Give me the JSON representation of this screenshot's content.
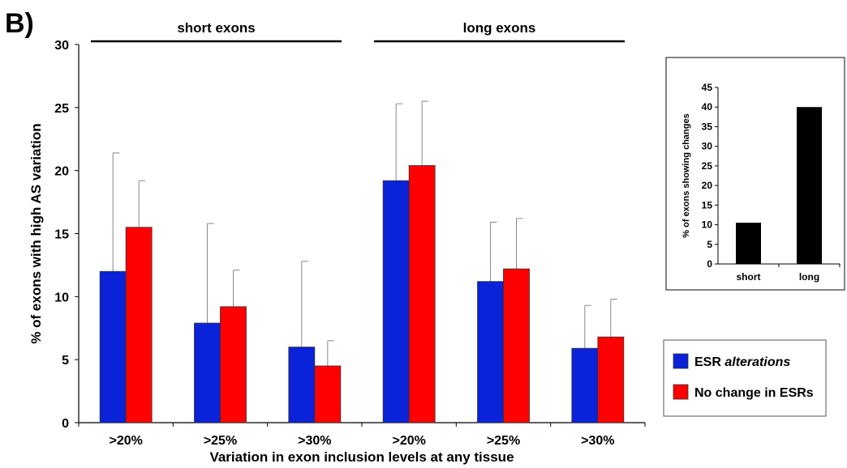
{
  "panel_label": "B)",
  "colors": {
    "esr_alterations": "#0a22d8",
    "no_change": "#ff0000",
    "error_bar": "#888888",
    "axis": "#000000",
    "inset_bar": "#000000"
  },
  "chart_data": [
    {
      "type": "bar",
      "categories": [
        ">20%",
        ">25%",
        ">30%",
        ">20%",
        ">25%",
        ">30%"
      ],
      "groups": [
        {
          "label": "short exons",
          "category_indices": [
            0,
            1,
            2
          ]
        },
        {
          "label": "long exons",
          "category_indices": [
            3,
            4,
            5
          ]
        }
      ],
      "series": [
        {
          "name": "ESR alterations",
          "name_plain": "ESR ",
          "name_italic": "alterations",
          "color": "#0a22d8",
          "values": [
            12.0,
            7.9,
            6.0,
            19.2,
            11.2,
            5.9
          ],
          "error_upper": [
            21.4,
            15.8,
            12.8,
            25.3,
            15.9,
            9.3
          ]
        },
        {
          "name": "No change in ESRs",
          "color": "#ff0000",
          "values": [
            15.5,
            9.2,
            4.5,
            20.4,
            12.2,
            6.8
          ],
          "error_upper": [
            19.2,
            12.1,
            6.5,
            25.5,
            16.2,
            9.8
          ]
        }
      ],
      "xlabel": "Variation in exon inclusion levels at any tissue",
      "ylabel": "% of exons with high AS variation",
      "ylim": [
        0,
        30
      ],
      "yticks": [
        0,
        5,
        10,
        15,
        20,
        25,
        30
      ],
      "legend_position": "right"
    },
    {
      "type": "bar",
      "categories": [
        "short",
        "long"
      ],
      "values": [
        10.5,
        40.0
      ],
      "ylabel": "% of exons showing changes",
      "ylim": [
        0,
        45
      ],
      "yticks": [
        0,
        5,
        10,
        15,
        20,
        25,
        30,
        35,
        40,
        45
      ],
      "color": "#000000",
      "position": "top-right inset"
    }
  ]
}
